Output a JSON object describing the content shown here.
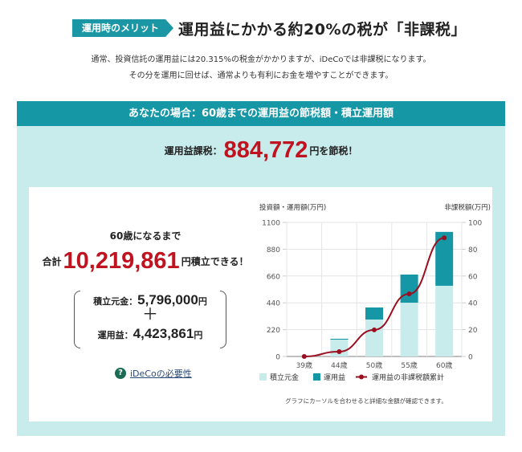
{
  "headline": {
    "badge": "運用時のメリット",
    "title": "運用益にかかる約20%の税が「非課税」"
  },
  "intro": {
    "line1": "通常、投資信託の運用益には20.315%の税金がかかりますが、iDeCoでは非課税になります。",
    "line2": "その分を運用に回せば、通常よりも有利にお金を増やすことができます。"
  },
  "panel": {
    "header": "あなたの場合：60歳までの運用益の節税額・積立運用額",
    "tax_prefix": "運用益課税：",
    "tax_amount": "884,772",
    "tax_suffix": "円を節税！"
  },
  "summary": {
    "until": "60歳になるまで",
    "total_prefix": "合計",
    "total_amount": "10,219,861",
    "total_suffix": "円積立できる！",
    "principal_label": "積立元金：",
    "principal_amount": "5,796,000",
    "principal_unit": "円",
    "plus": "＋",
    "gain_label": "運用益：",
    "gain_amount": "4,423,861",
    "gain_unit": "円",
    "help_icon": "?",
    "help_link": "iDeCoの必要性"
  },
  "colors": {
    "teal_dark": "#1597a6",
    "teal_light": "#c8ebec",
    "accent_red": "#c0121f",
    "line_red": "#9b1020"
  },
  "chart_data": {
    "type": "bar",
    "stacked": true,
    "categories": [
      "39歳",
      "44歳",
      "50歳",
      "55歳",
      "60歳"
    ],
    "series": [
      {
        "name": "積立元金",
        "axis": "left",
        "type": "bar",
        "color": "#c8ebec",
        "values": [
          0,
          138,
          303,
          441,
          580
        ]
      },
      {
        "name": "運用益",
        "axis": "left",
        "type": "bar",
        "color": "#1597a6",
        "values": [
          0,
          7,
          99,
          231,
          442
        ]
      },
      {
        "name": "運用益の非課税額累計",
        "axis": "right",
        "type": "line",
        "color": "#9b1020",
        "values": [
          0,
          3.6,
          19.8,
          46.7,
          88.5
        ]
      }
    ],
    "ylabel_left": "投資額・運用額(万円)",
    "ylabel_right": "非課税額(万円)",
    "ylim_left": [
      0,
      1100
    ],
    "yticks_left": [
      "0",
      "220",
      "440",
      "660",
      "880",
      "1100"
    ],
    "ylim_right": [
      0,
      100
    ],
    "yticks_right": [
      "0",
      "20",
      "40",
      "60",
      "80",
      "100"
    ],
    "grid": true,
    "legend_position": "bottom",
    "legend": [
      "積立元金",
      "運用益",
      "運用益の非課税額累計"
    ],
    "note": "グラフにカーソルを合わせると詳細な金額が確認できます。"
  }
}
